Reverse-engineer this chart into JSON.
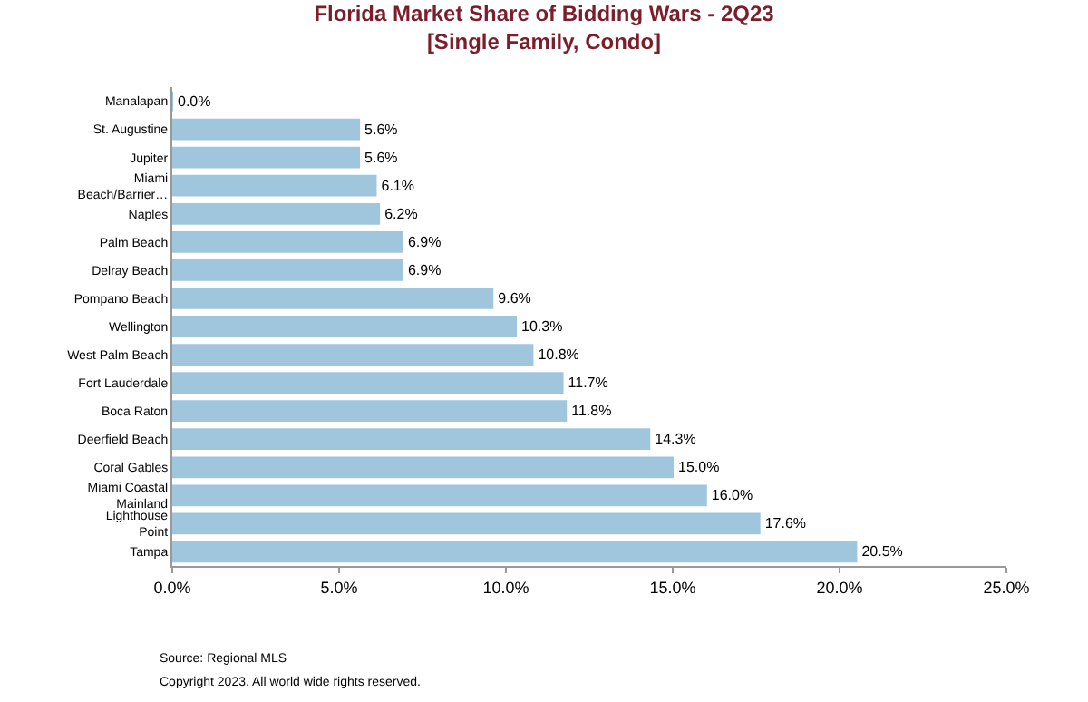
{
  "chart_data": {
    "type": "bar",
    "orientation": "horizontal",
    "title": "Florida Market Share of Bidding Wars - 2Q23",
    "subtitle": "[Single Family, Condo]",
    "categories": [
      "Manalapan",
      "St. Augustine",
      "Jupiter",
      "Miami Beach/Barrier…",
      "Naples",
      "Palm Beach",
      "Delray Beach",
      "Pompano Beach",
      "Wellington",
      "West Palm Beach",
      "Fort Lauderdale",
      "Boca Raton",
      "Deerfield Beach",
      "Coral Gables",
      "Miami Coastal Mainland",
      "Lighthouse Point",
      "Tampa"
    ],
    "values": [
      0.0,
      5.6,
      5.6,
      6.1,
      6.2,
      6.9,
      6.9,
      9.6,
      10.3,
      10.8,
      11.7,
      11.8,
      14.3,
      15.0,
      16.0,
      17.6,
      20.5
    ],
    "value_labels": [
      "0.0%",
      "5.6%",
      "5.6%",
      "6.1%",
      "6.2%",
      "6.9%",
      "6.9%",
      "9.6%",
      "10.3%",
      "10.8%",
      "11.7%",
      "11.8%",
      "14.3%",
      "15.0%",
      "16.0%",
      "17.6%",
      "20.5%"
    ],
    "color": "#9fc6dd",
    "xlim": [
      0,
      25
    ],
    "xticks": [
      {
        "value": 0,
        "label": "0.0%"
      },
      {
        "value": 5,
        "label": "5.0%"
      },
      {
        "value": 10,
        "label": "10.0%"
      },
      {
        "value": 15,
        "label": "15.0%"
      },
      {
        "value": 20,
        "label": "20.0%"
      },
      {
        "value": 25,
        "label": "25.0%"
      }
    ],
    "annotations": [
      "Source: Regional MLS",
      "Copyright 2023. All world wide rights reserved."
    ]
  }
}
